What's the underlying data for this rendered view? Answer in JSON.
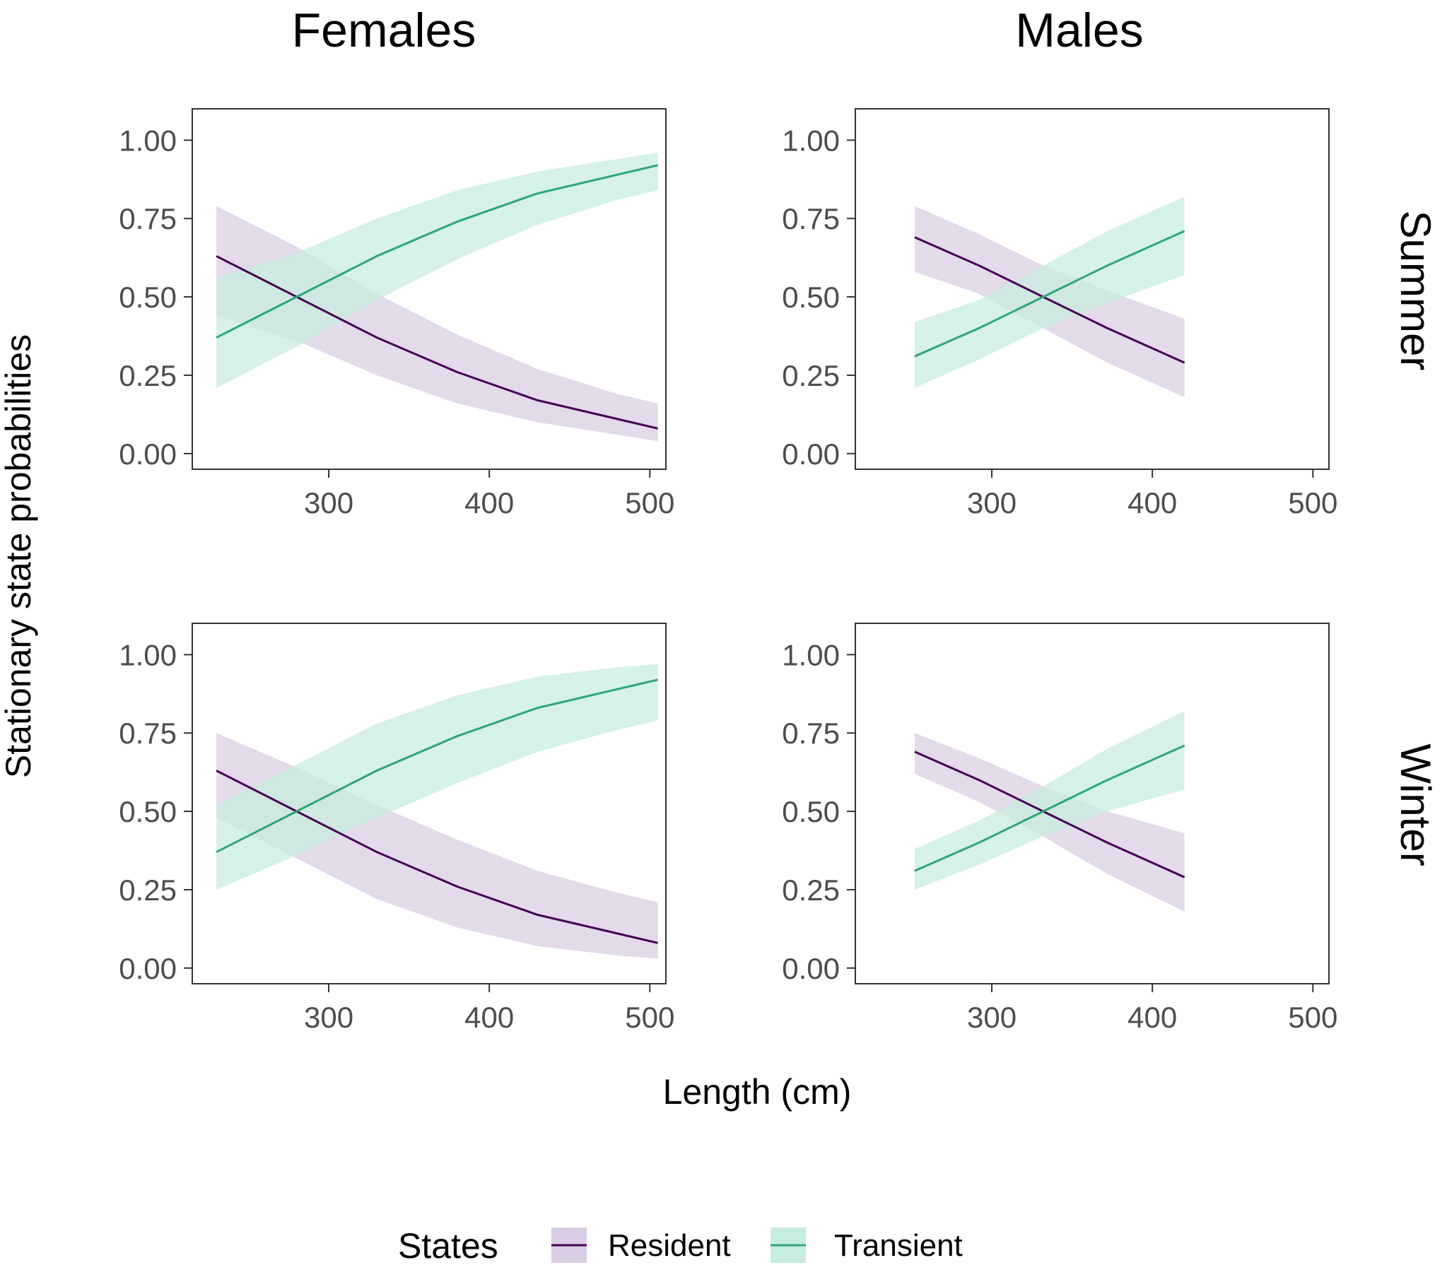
{
  "chart_data": {
    "type": "line",
    "title": "",
    "xlabel": "Length (cm)",
    "ylabel": "Stationary state probabilities",
    "xlim": [
      215,
      510
    ],
    "ylim": [
      -0.05,
      1.1
    ],
    "x_ticks": [
      300,
      400,
      500
    ],
    "x_tick_labels": [
      "300",
      "400",
      "500"
    ],
    "y_ticks": [
      0,
      0.25,
      0.5,
      0.75,
      1.0
    ],
    "y_tick_labels": [
      "0.00",
      "0.25",
      "0.50",
      "0.75",
      "1.00"
    ],
    "columns": [
      "Females",
      "Males"
    ],
    "rows": [
      "Summer",
      "Winter"
    ],
    "legend": {
      "title": "States",
      "position": "bottom",
      "entries": [
        {
          "label": "Resident",
          "color": "#440154",
          "fill": "#d9cde3"
        },
        {
          "label": "Transient",
          "color": "#2ea57b",
          "fill": "#c8ecde"
        }
      ]
    },
    "panels": [
      {
        "column": "Females",
        "row": "Summer",
        "series": [
          {
            "name": "Resident",
            "x": [
              230,
              280,
              330,
              380,
              430,
              480,
              505
            ],
            "y": [
              0.63,
              0.5,
              0.37,
              0.26,
              0.17,
              0.11,
              0.08
            ],
            "lower": [
              0.44,
              0.36,
              0.25,
              0.16,
              0.1,
              0.06,
              0.04
            ],
            "upper": [
              0.79,
              0.66,
              0.51,
              0.38,
              0.27,
              0.19,
              0.16
            ]
          },
          {
            "name": "Transient",
            "x": [
              230,
              280,
              330,
              380,
              430,
              480,
              505
            ],
            "y": [
              0.37,
              0.5,
              0.63,
              0.74,
              0.83,
              0.89,
              0.92
            ],
            "lower": [
              0.21,
              0.34,
              0.49,
              0.62,
              0.73,
              0.81,
              0.84
            ],
            "upper": [
              0.56,
              0.64,
              0.75,
              0.84,
              0.9,
              0.94,
              0.96
            ]
          }
        ]
      },
      {
        "column": "Males",
        "row": "Summer",
        "series": [
          {
            "name": "Resident",
            "x": [
              252,
              292,
              332,
              372,
              420
            ],
            "y": [
              0.69,
              0.6,
              0.5,
              0.4,
              0.29
            ],
            "lower": [
              0.58,
              0.51,
              0.4,
              0.29,
              0.18
            ],
            "upper": [
              0.79,
              0.7,
              0.6,
              0.52,
              0.43
            ]
          },
          {
            "name": "Transient",
            "x": [
              252,
              292,
              332,
              372,
              420
            ],
            "y": [
              0.31,
              0.4,
              0.5,
              0.6,
              0.71
            ],
            "lower": [
              0.21,
              0.3,
              0.4,
              0.48,
              0.57
            ],
            "upper": [
              0.42,
              0.49,
              0.6,
              0.71,
              0.82
            ]
          }
        ]
      },
      {
        "column": "Females",
        "row": "Winter",
        "series": [
          {
            "name": "Resident",
            "x": [
              230,
              280,
              330,
              380,
              430,
              480,
              505
            ],
            "y": [
              0.63,
              0.5,
              0.37,
              0.26,
              0.17,
              0.11,
              0.08
            ],
            "lower": [
              0.48,
              0.35,
              0.22,
              0.13,
              0.07,
              0.04,
              0.03
            ],
            "upper": [
              0.75,
              0.64,
              0.52,
              0.41,
              0.31,
              0.24,
              0.21
            ]
          },
          {
            "name": "Transient",
            "x": [
              230,
              280,
              330,
              380,
              430,
              480,
              505
            ],
            "y": [
              0.37,
              0.5,
              0.63,
              0.74,
              0.83,
              0.89,
              0.92
            ],
            "lower": [
              0.25,
              0.36,
              0.48,
              0.59,
              0.69,
              0.76,
              0.79
            ],
            "upper": [
              0.52,
              0.65,
              0.78,
              0.87,
              0.93,
              0.96,
              0.97
            ]
          }
        ]
      },
      {
        "column": "Males",
        "row": "Winter",
        "series": [
          {
            "name": "Resident",
            "x": [
              252,
              292,
              332,
              372,
              420
            ],
            "y": [
              0.69,
              0.6,
              0.5,
              0.4,
              0.29
            ],
            "lower": [
              0.62,
              0.53,
              0.42,
              0.3,
              0.18
            ],
            "upper": [
              0.75,
              0.67,
              0.58,
              0.5,
              0.43
            ]
          },
          {
            "name": "Transient",
            "x": [
              252,
              292,
              332,
              372,
              420
            ],
            "y": [
              0.31,
              0.4,
              0.5,
              0.6,
              0.71
            ],
            "lower": [
              0.25,
              0.33,
              0.42,
              0.5,
              0.57
            ],
            "upper": [
              0.38,
              0.47,
              0.58,
              0.7,
              0.82
            ]
          }
        ]
      }
    ]
  }
}
